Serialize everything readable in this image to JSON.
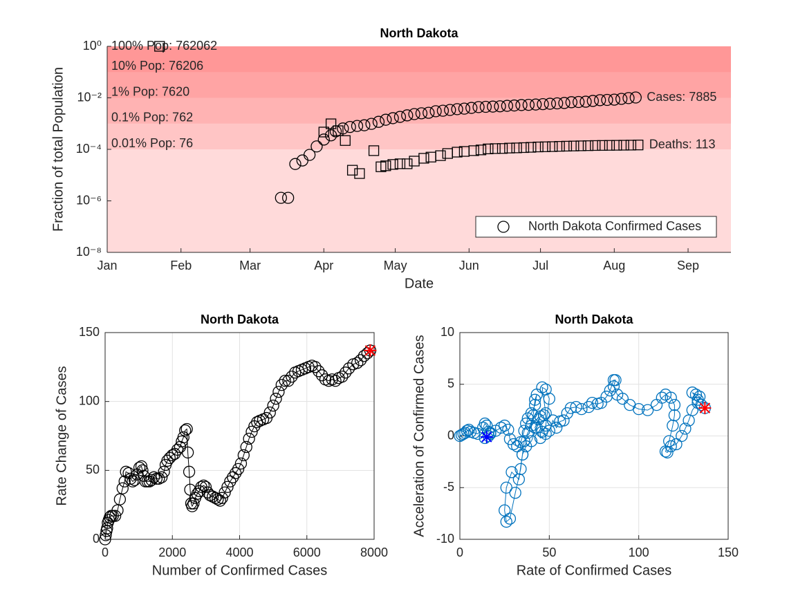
{
  "chart_data": [
    {
      "type": "scatter",
      "title": "North Dakota",
      "xlabel": "Date",
      "ylabel": "Fraction of total Population",
      "yscale": "log",
      "xlim": [
        0,
        262
      ],
      "ylim": [
        1e-08,
        1
      ],
      "xticks": [
        {
          "value": 0,
          "label": "Jan"
        },
        {
          "value": 31,
          "label": "Feb"
        },
        {
          "value": 60,
          "label": "Mar"
        },
        {
          "value": 91,
          "label": "Apr"
        },
        {
          "value": 121,
          "label": "May"
        },
        {
          "value": 152,
          "label": "Jun"
        },
        {
          "value": 182,
          "label": "Jul"
        },
        {
          "value": 213,
          "label": "Aug"
        },
        {
          "value": 244,
          "label": "Sep"
        }
      ],
      "yticks": [
        {
          "value": 1,
          "label": "10⁰"
        },
        {
          "value": 0.01,
          "label": "10⁻²"
        },
        {
          "value": 0.0001,
          "label": "10⁻⁴"
        },
        {
          "value": 1e-06,
          "label": "10⁻⁶"
        },
        {
          "value": 1e-08,
          "label": "10⁻⁸"
        }
      ],
      "grid": false,
      "box": false,
      "legend": "lower right",
      "background": "#ff3b3b",
      "annotations": [
        {
          "text": "100% Pop: 762062",
          "y": 1
        },
        {
          "text": "10% Pop: 76206",
          "y": 0.1
        },
        {
          "text": "1% Pop: 7620",
          "y": 0.01
        },
        {
          "text": "0.1% Pop: 762",
          "y": 0.001
        },
        {
          "text": "0.01% Pop: 76",
          "y": 0.0001
        }
      ],
      "series": [
        {
          "name": "North Dakota Confirmed Cases",
          "marker": "circle",
          "color": "#000000",
          "label": "Cases: 7885",
          "x": [
            73,
            76,
            79,
            82,
            85,
            88,
            91,
            94,
            96,
            99,
            102,
            105,
            108,
            111,
            114,
            117,
            120,
            123,
            126,
            129,
            132,
            135,
            138,
            141,
            144,
            147,
            150,
            153,
            156,
            159,
            162,
            165,
            168,
            171,
            174,
            177,
            180,
            183,
            186,
            189,
            192,
            195,
            198,
            201,
            204,
            207,
            210,
            213,
            216,
            219,
            222
          ],
          "values": [
            1.31e-06,
            1.31e-06,
            2.7e-05,
            3.7e-05,
            6.1e-05,
            0.00013,
            0.00024,
            0.00035,
            0.0005,
            0.000646,
            0.00074,
            0.00081,
            0.00086,
            0.000977,
            0.00117,
            0.00141,
            0.00162,
            0.00182,
            0.00209,
            0.00234,
            0.00251,
            0.00263,
            0.00302,
            0.00316,
            0.00339,
            0.00363,
            0.0038,
            0.00407,
            0.00437,
            0.00447,
            0.00457,
            0.0047,
            0.0049,
            0.00505,
            0.00525,
            0.00535,
            0.0055,
            0.0057,
            0.00589,
            0.0061,
            0.00631,
            0.00676,
            0.0069,
            0.00708,
            0.00759,
            0.00813,
            0.0083,
            0.00851,
            0.00912,
            0.00977,
            0.0103
          ]
        },
        {
          "marker": "square",
          "color": "#000000",
          "label": "Deaths: 113",
          "x": [
            22,
            91,
            94,
            97,
            100,
            103,
            106,
            112,
            115,
            117,
            120,
            123,
            126,
            129,
            133,
            136,
            140,
            143,
            147,
            150,
            154,
            157,
            160,
            163,
            166,
            169,
            172,
            175,
            178,
            181,
            184,
            187,
            190,
            193,
            196,
            199,
            202,
            205,
            208,
            211,
            214,
            217,
            220,
            223
          ],
          "values": [
            1,
            0.00047,
            0.00098,
            0.00053,
            0.00022,
            1.55e-05,
            1.15e-05,
            8.9e-05,
            2.1e-05,
            2.3e-05,
            2.6e-05,
            2.75e-05,
            2.75e-05,
            3.5e-05,
            4.5e-05,
            5e-05,
            5.7e-05,
            6.9e-05,
            7.8e-05,
            8.3e-05,
            8.9e-05,
            9.5e-05,
            0.000104,
            0.000107,
            0.000108,
            0.000112,
            0.000114,
            0.000117,
            0.00012,
            0.000124,
            0.000126,
            0.000128,
            0.000131,
            0.000133,
            0.000135,
            0.000137,
            0.000139,
            0.000141,
            0.000142,
            0.000143,
            0.000144,
            0.000145,
            0.000146,
            0.000148
          ]
        }
      ]
    },
    {
      "type": "line",
      "title": "North Dakota",
      "xlabel": "Number of Confirmed Cases",
      "ylabel": "Rate Change of Cases",
      "xlim": [
        0,
        8000
      ],
      "ylim": [
        0,
        150
      ],
      "xticks": [
        0,
        2000,
        4000,
        6000,
        8000
      ],
      "yticks": [
        0,
        50,
        100,
        150
      ],
      "grid": true,
      "box": true,
      "series": [
        {
          "marker": "circle",
          "color": "#000000",
          "x": [
            0,
            20,
            40,
            60,
            80,
            110,
            140,
            180,
            230,
            300,
            370,
            440,
            520,
            580,
            620,
            700,
            760,
            820,
            880,
            950,
            1020,
            1080,
            1110,
            1150,
            1200,
            1260,
            1320,
            1380,
            1450,
            1530,
            1600,
            1680,
            1750,
            1800,
            1850,
            1920,
            2000,
            2070,
            2150,
            2230,
            2280,
            2330,
            2380,
            2430,
            2460,
            2500,
            2530,
            2560,
            2590,
            2630,
            2680,
            2740,
            2800,
            2860,
            2930,
            2990,
            3050,
            3120,
            3200,
            3280,
            3350,
            3420,
            3480,
            3560,
            3640,
            3720,
            3800,
            3880,
            3960,
            4040,
            4120,
            4200,
            4280,
            4360,
            4440,
            4520,
            4600,
            4700,
            4800,
            4900,
            5000,
            5080,
            5160,
            5250,
            5350,
            5450,
            5550,
            5650,
            5750,
            5850,
            5950,
            6050,
            6150,
            6250,
            6350,
            6450,
            6550,
            6650,
            6750,
            6850,
            6950,
            7050,
            7150,
            7250,
            7380,
            7500,
            7600,
            7700,
            7800,
            7885
          ],
          "values": [
            0,
            3,
            6,
            8,
            12,
            14,
            16,
            17,
            17,
            17,
            21,
            29,
            37,
            42,
            49,
            48,
            44,
            42,
            43,
            47,
            52,
            53,
            50,
            46,
            42,
            42,
            42,
            43,
            45,
            44,
            44,
            45,
            49,
            54,
            57,
            59,
            61,
            62,
            65,
            67,
            71,
            74,
            79,
            80,
            63,
            49,
            36,
            26,
            24,
            26,
            30,
            33,
            35,
            38,
            39,
            38,
            34,
            32,
            31,
            30,
            29,
            28,
            30,
            34,
            38,
            42,
            45,
            48,
            51,
            55,
            61,
            67,
            73,
            78,
            82,
            85,
            86,
            87,
            88,
            92,
            97,
            102,
            107,
            112,
            115,
            115,
            118,
            121,
            122,
            123,
            124,
            125,
            126,
            125,
            122,
            119,
            116,
            115,
            116,
            115,
            117,
            118,
            121,
            124,
            127,
            128,
            130,
            133,
            135,
            137
          ]
        }
      ],
      "highlights": [
        {
          "x": 7885,
          "y": 137,
          "color": "#ff0000"
        }
      ]
    },
    {
      "type": "line",
      "title": "North Dakota",
      "xlabel": "Rate of Confirmed Cases",
      "ylabel": "Acceleration of Confirmed Cases",
      "xlim": [
        0,
        150
      ],
      "ylim": [
        -10,
        10
      ],
      "xticks": [
        0,
        50,
        100,
        150
      ],
      "yticks": [
        -10,
        -5,
        0,
        5,
        10
      ],
      "grid": true,
      "box": true,
      "series": [
        {
          "marker": "circle",
          "color": "#0072bd",
          "x": [
            0,
            1,
            2,
            3,
            4,
            5,
            6,
            8,
            10,
            13,
            14,
            15,
            16,
            17,
            16,
            14,
            17,
            20,
            23,
            25,
            27,
            28,
            30,
            32,
            34,
            36,
            37,
            38,
            40,
            42,
            43,
            42,
            41,
            40,
            38,
            36,
            35,
            34,
            31,
            28,
            26,
            25,
            26,
            29,
            33,
            35,
            37,
            40,
            43,
            45,
            47,
            48,
            46,
            48,
            50,
            48,
            46,
            44,
            42,
            45,
            48,
            50,
            52,
            54,
            56,
            58,
            60,
            62,
            65,
            68,
            72,
            74,
            77,
            79,
            82,
            84,
            86,
            87,
            86,
            88,
            91,
            95,
            100,
            105,
            110,
            113,
            115,
            118,
            120,
            120,
            119,
            117,
            115,
            116,
            118,
            121,
            124,
            126,
            128,
            130,
            133,
            134,
            132,
            130,
            133,
            135,
            137
          ],
          "values": [
            0,
            0.1,
            0.2,
            0.3,
            0.5,
            0.6,
            0.4,
            0.3,
            0.2,
            0.8,
            1.2,
            1.0,
            0.4,
            0.2,
            0,
            -0.2,
            0.3,
            0.5,
            0.8,
            1.0,
            0.6,
            -0.3,
            -0.8,
            -1.0,
            -0.6,
            0.5,
            1.2,
            1.7,
            2.2,
            3.0,
            4.0,
            3.5,
            2.0,
            1.0,
            0.3,
            -0.5,
            -1.8,
            -3.2,
            -5.5,
            -8.0,
            -8.3,
            -7.2,
            -5.0,
            -3.5,
            -4.2,
            -1.8,
            -1.0,
            -0.5,
            0.8,
            1.9,
            2.0,
            2.2,
            4.7,
            4.5,
            3.6,
            1.0,
            0.4,
            1.6,
            0.8,
            -0.2,
            0.2,
            0.5,
            1.5,
            0.8,
            1.4,
            1.5,
            2.2,
            2.7,
            2.8,
            2.6,
            2.8,
            3.2,
            3.1,
            3.2,
            3.8,
            4.4,
            5.4,
            5.4,
            4.8,
            4.0,
            3.6,
            3.0,
            2.6,
            2.5,
            3.0,
            3.7,
            4.0,
            3.7,
            3.0,
            2.0,
            1.0,
            -0.5,
            -1.5,
            -1.6,
            -1.0,
            -0.8,
            0,
            0.7,
            1.5,
            2.5,
            3.2,
            3.8,
            4.0,
            4.2,
            3.5,
            3.0,
            2.7
          ]
        }
      ],
      "highlights": [
        {
          "x": 15,
          "y": -0.1,
          "color": "#0000ff"
        },
        {
          "x": 137,
          "y": 2.7,
          "color": "#ff0000"
        }
      ]
    }
  ]
}
